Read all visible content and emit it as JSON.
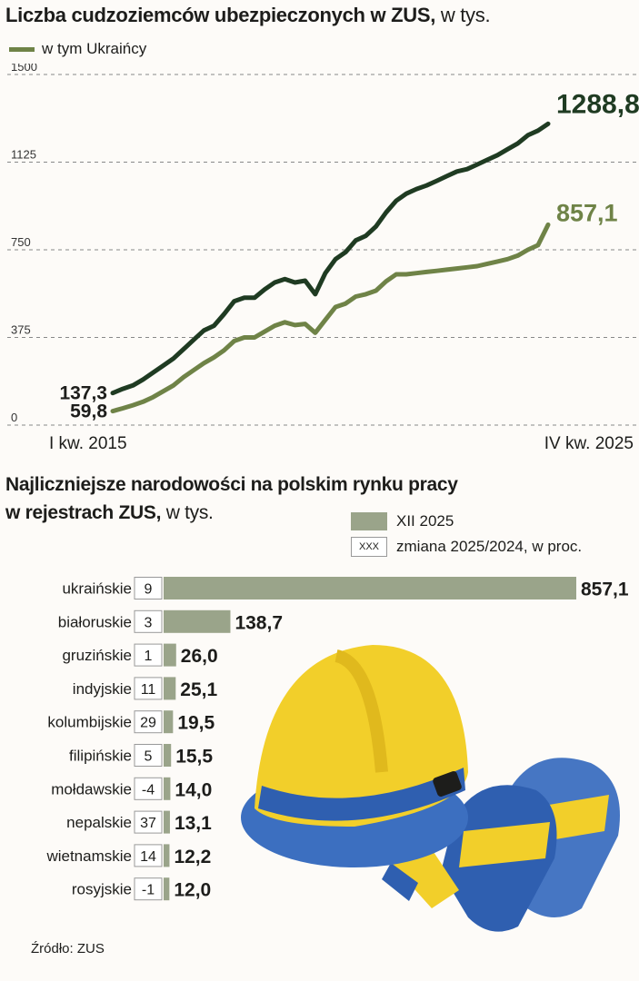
{
  "line_chart": {
    "title": "Liczba cudzoziemców ubezpieczonych w ZUS,",
    "title_unit": "w tys.",
    "legend_label": "w tym Ukraińcy"
  },
  "bar_chart": {
    "title_line1": "Najliczniejsze narodowości na polskim rynku pracy",
    "title_line2": "w rejestrach ZUS,",
    "title_unit": "w tys.",
    "legend_bar": "XII 2025",
    "legend_box_symbol": "XXX",
    "legend_box": "zmiana 2025/2024, w proc."
  },
  "source": "Źródło: ZUS",
  "colors": {
    "total_line": "#1f3b22",
    "ukraine_line": "#6f8347",
    "bar": "#9aa48a",
    "helmet": "#f2cf2a",
    "blue": "#3c6fc0"
  },
  "chart_data": [
    {
      "type": "line",
      "ylim": [
        0,
        1500
      ],
      "y_ticks": [
        "0",
        "375",
        "750",
        "1125",
        "1500"
      ],
      "x_start_label": "I kw. 2015",
      "x_end_label": "IV kw. 2025",
      "series": [
        {
          "name": "",
          "start_label": "137,3",
          "end_label": "1288,8",
          "values": [
            137.3,
            155,
            170,
            195,
            225,
            255,
            285,
            325,
            365,
            405,
            425,
            475,
            530,
            545,
            545,
            580,
            610,
            625,
            610,
            618,
            560,
            650,
            710,
            740,
            790,
            810,
            850,
            910,
            960,
            990,
            1010,
            1025,
            1045,
            1065,
            1085,
            1095,
            1115,
            1135,
            1155,
            1180,
            1205,
            1240,
            1260,
            1288.8
          ]
        },
        {
          "name": "w tym Ukraińcy",
          "start_label": "59,8",
          "end_label": "857,1",
          "values": [
            59.8,
            72,
            85,
            100,
            120,
            145,
            170,
            205,
            235,
            265,
            290,
            320,
            360,
            375,
            375,
            400,
            425,
            440,
            428,
            433,
            395,
            450,
            505,
            520,
            550,
            560,
            575,
            615,
            645,
            645,
            650,
            655,
            660,
            665,
            670,
            675,
            680,
            690,
            700,
            710,
            725,
            750,
            770,
            857.1
          ]
        }
      ]
    },
    {
      "type": "bar",
      "categories": [
        "ukraińskie",
        "białoruskie",
        "gruzińskie",
        "indyjskie",
        "kolumbijskie",
        "filipińskie",
        "mołdawskie",
        "nepalskie",
        "wietnamskie",
        "rosyjskie"
      ],
      "values": [
        857.1,
        138.7,
        26.0,
        25.1,
        19.5,
        15.5,
        14.0,
        13.1,
        12.2,
        12.0
      ],
      "value_labels": [
        "857,1",
        "138,7",
        "26,0",
        "25,1",
        "19,5",
        "15,5",
        "14,0",
        "13,1",
        "12,2",
        "12,0"
      ],
      "change_labels": [
        "9",
        "3",
        "1",
        "11",
        "29",
        "5",
        "-4",
        "37",
        "14",
        "-1"
      ]
    }
  ]
}
